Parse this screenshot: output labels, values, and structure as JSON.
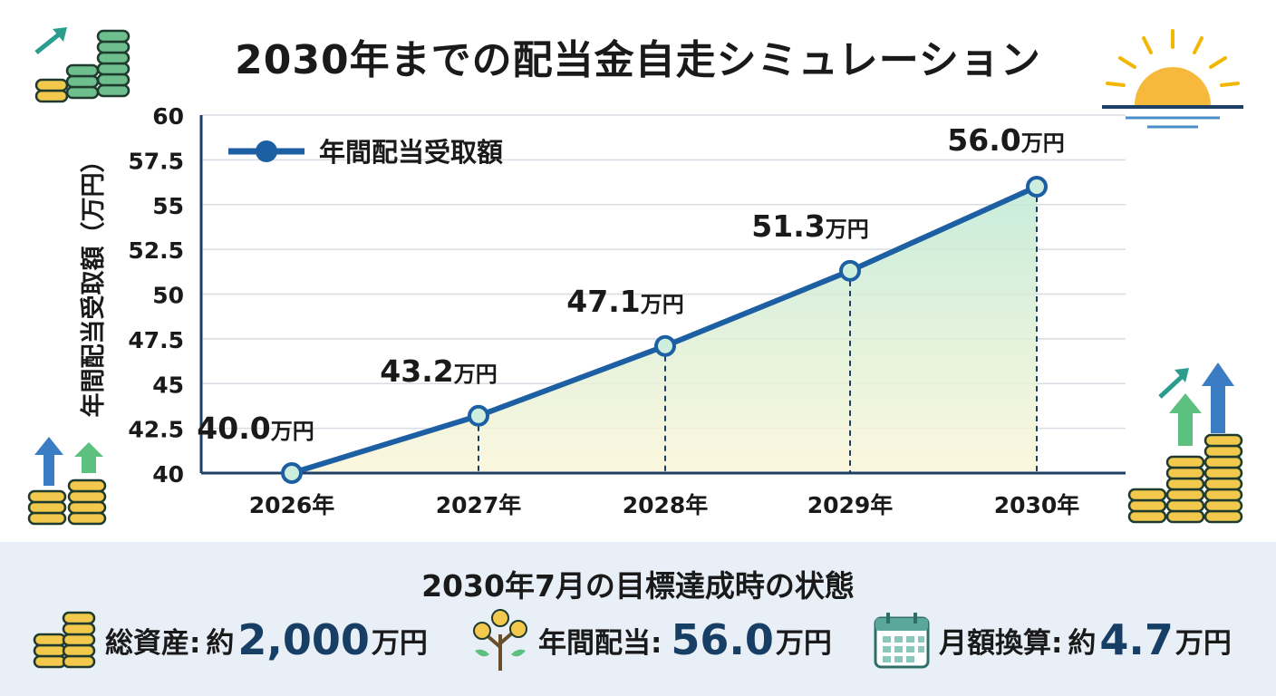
{
  "title": "2030年までの配当金自走シミュレーション",
  "chart_data": {
    "type": "line",
    "categories": [
      "2026年",
      "2027年",
      "2028年",
      "2029年",
      "2030年"
    ],
    "series": [
      {
        "name": "年間配当受取額",
        "values": [
          40.0,
          43.2,
          47.1,
          51.3,
          56.0
        ]
      }
    ],
    "data_labels": [
      "40.0万円",
      "43.2万円",
      "47.1万円",
      "51.3万円",
      "56.0万円"
    ],
    "ylabel": "年間配当受取額（万円）",
    "xlabel": "",
    "ylim": [
      40,
      60
    ],
    "yticks": [
      "40",
      "42.5",
      "45",
      "47.5",
      "50",
      "52.5",
      "55",
      "57.5",
      "60"
    ],
    "grid": true,
    "legend_position": "top-left",
    "colors": {
      "line": "#1d5fa3",
      "marker_fill": "#cdeedd",
      "area_top": "#bfe9d4",
      "area_bottom": "#fbf6d8"
    }
  },
  "summary": {
    "heading": "2030年7月の目標達成時の状態",
    "items": [
      {
        "icon": "coin-stack-icon",
        "label": "総資産:",
        "prefix": "約",
        "value": "2,000",
        "unit": "万円"
      },
      {
        "icon": "money-tree-icon",
        "label": "年間配当:",
        "prefix": "",
        "value": "56.0",
        "unit": "万円"
      },
      {
        "icon": "calendar-icon",
        "label": "月額換算:",
        "prefix": "約",
        "value": "4.7",
        "unit": "万円"
      }
    ]
  }
}
